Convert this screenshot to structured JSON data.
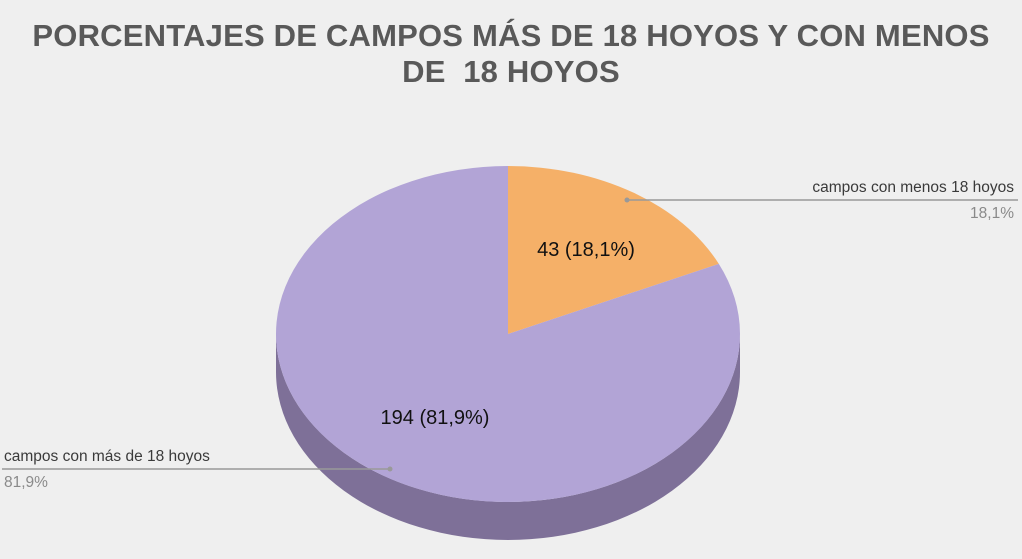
{
  "title": {
    "line1": "PORCENTAJES DE CAMPOS MÁS DE 18 HOYOS Y CON MENOS",
    "line2": "DE  18 HOYOS"
  },
  "chart_data": {
    "type": "pie",
    "title": "PORCENTAJES DE CAMPOS MÁS DE 18 HOYOS Y CON MENOS DE  18 HOYOS",
    "three_d": true,
    "start": "12 o'clock, clockwise",
    "slices": [
      {
        "label": "campos con menos 18 hoyos",
        "value": 43,
        "percent": 18.1,
        "inner_label": "43 (18,1%)",
        "outer_percent": "18,1%",
        "color": "#f5b068",
        "side_color": "#c98a48",
        "callout_side": "right"
      },
      {
        "label": "campos con más de 18 hoyos",
        "value": 194,
        "percent": 81.9,
        "inner_label": "194 (81,9%)",
        "outer_percent": "81,9%",
        "color": "#b2a4d6",
        "side_color": "#7e7098",
        "callout_side": "left"
      }
    ],
    "legend": "callouts outside pie"
  }
}
